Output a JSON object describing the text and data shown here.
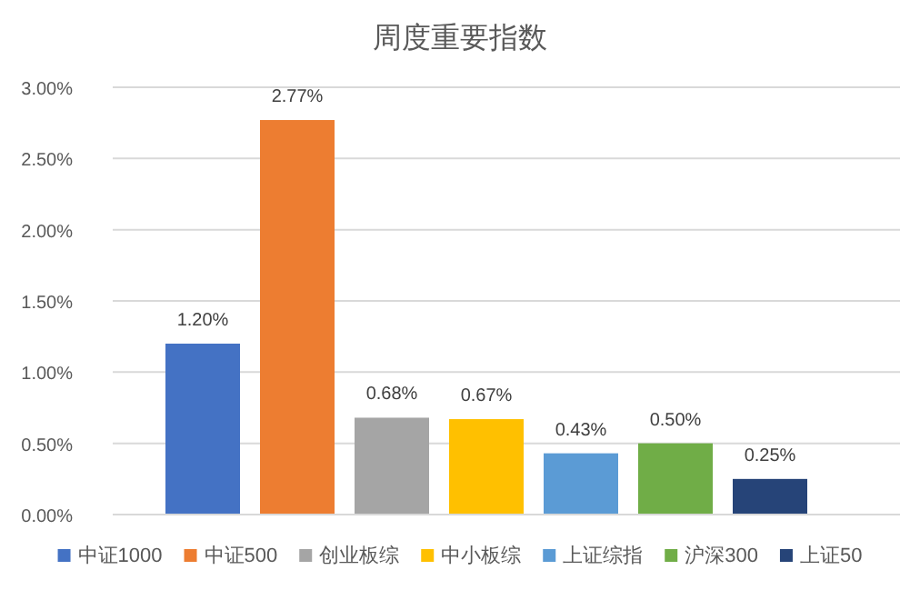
{
  "chart_data": {
    "type": "bar",
    "title": "周度重要指数",
    "categories": [
      null
    ],
    "series": [
      {
        "name": "中证1000",
        "color": "#4472c4",
        "values": [
          1.2
        ],
        "value_labels": [
          "1.20%"
        ]
      },
      {
        "name": "中证500",
        "color": "#ed7d31",
        "values": [
          2.77
        ],
        "value_labels": [
          "2.77%"
        ]
      },
      {
        "name": "创业板综",
        "color": "#a5a5a5",
        "values": [
          0.68
        ],
        "value_labels": [
          "0.68%"
        ]
      },
      {
        "name": "中小板综",
        "color": "#ffc000",
        "values": [
          0.67
        ],
        "value_labels": [
          "0.67%"
        ]
      },
      {
        "name": "上证综指",
        "color": "#5b9bd5",
        "values": [
          0.43
        ],
        "value_labels": [
          "0.43%"
        ]
      },
      {
        "name": "沪深300",
        "color": "#70ad47",
        "values": [
          0.5
        ],
        "value_labels": [
          "0.50%"
        ]
      },
      {
        "name": "上证50",
        "color": "#264478",
        "values": [
          0.25
        ],
        "value_labels": [
          "0.25%"
        ]
      }
    ],
    "ylim": [
      0,
      3
    ],
    "yticks": [
      {
        "value": 0,
        "label": "0.00%"
      },
      {
        "value": 0.5,
        "label": "0.50%"
      },
      {
        "value": 1,
        "label": "1.00%"
      },
      {
        "value": 1.5,
        "label": "1.50%"
      },
      {
        "value": 2,
        "label": "2.00%"
      },
      {
        "value": 2.5,
        "label": "2.50%"
      },
      {
        "value": 3,
        "label": "3.00%"
      }
    ],
    "grid": "y",
    "legend": "bottom"
  }
}
